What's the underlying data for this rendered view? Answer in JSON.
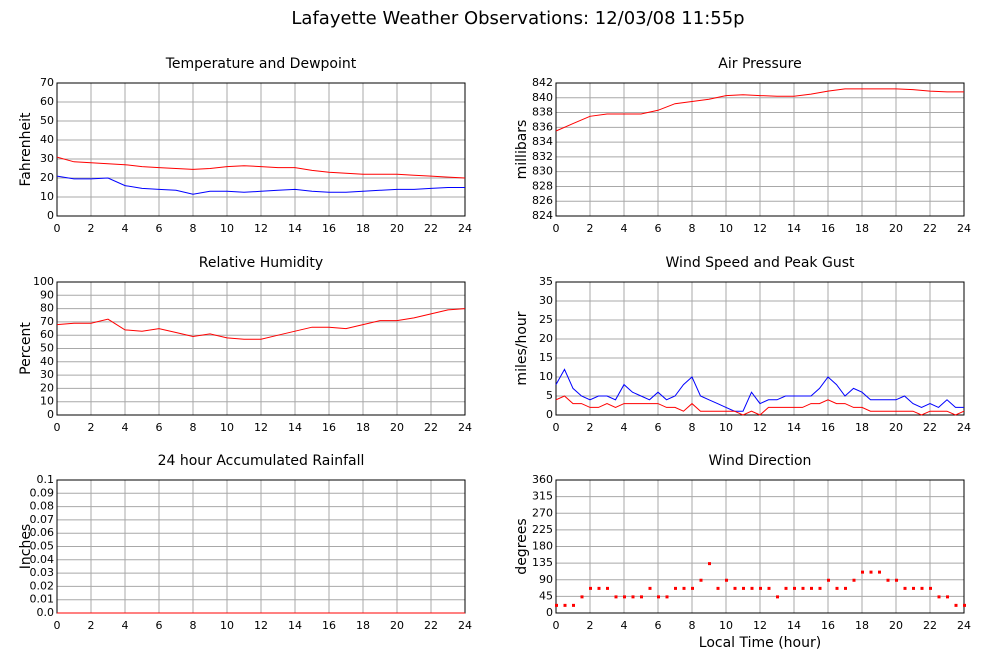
{
  "title": "Lafayette Weather Observations: 12/03/08 11:55p",
  "chart_data": [
    {
      "type": "line",
      "title": "Temperature and Dewpoint",
      "y_label": "Fahrenheit",
      "x": [
        0,
        1,
        2,
        3,
        4,
        5,
        6,
        7,
        8,
        9,
        10,
        11,
        12,
        13,
        14,
        15,
        16,
        17,
        18,
        19,
        20,
        21,
        22,
        23,
        24
      ],
      "xlim": [
        0,
        24
      ],
      "xticks": [
        0,
        2,
        4,
        6,
        8,
        10,
        12,
        14,
        16,
        18,
        20,
        22,
        24
      ],
      "ylim": [
        0,
        70
      ],
      "yticks": [
        0,
        10,
        20,
        30,
        40,
        50,
        60,
        70
      ],
      "grid": true,
      "series": [
        {
          "name": "Temperature",
          "color": "#ff0000",
          "values": [
            31,
            28.5,
            28,
            27.5,
            27,
            26,
            25.5,
            25,
            24.5,
            25,
            26,
            26.5,
            26,
            25.5,
            25.5,
            24,
            23,
            22.5,
            22,
            22,
            22,
            21.5,
            21,
            20.5,
            20
          ]
        },
        {
          "name": "Dewpoint",
          "color": "#0000ff",
          "values": [
            21,
            19.5,
            19.5,
            20,
            16,
            14.5,
            14,
            13.5,
            11.5,
            13,
            13,
            12.5,
            13,
            13.5,
            14,
            13,
            12.5,
            12.5,
            13,
            13.5,
            14,
            14,
            14.5,
            15,
            15
          ]
        }
      ]
    },
    {
      "type": "line",
      "title": "Air Pressure",
      "y_label": "millibars",
      "x": [
        0,
        1,
        2,
        3,
        4,
        5,
        6,
        7,
        8,
        9,
        10,
        11,
        12,
        13,
        14,
        15,
        16,
        17,
        18,
        19,
        20,
        21,
        22,
        23,
        24
      ],
      "xlim": [
        0,
        24
      ],
      "xticks": [
        0,
        2,
        4,
        6,
        8,
        10,
        12,
        14,
        16,
        18,
        20,
        22,
        24
      ],
      "ylim": [
        824,
        842
      ],
      "yticks": [
        824,
        826,
        828,
        830,
        832,
        834,
        836,
        838,
        840,
        842
      ],
      "grid": true,
      "series": [
        {
          "name": "Pressure",
          "color": "#ff0000",
          "values": [
            835.5,
            836.5,
            837.5,
            837.8,
            837.8,
            837.8,
            838.3,
            839.2,
            839.5,
            839.8,
            840.3,
            840.4,
            840.3,
            840.2,
            840.2,
            840.5,
            840.9,
            841.2,
            841.2,
            841.2,
            841.2,
            841.1,
            840.9,
            840.8,
            840.8
          ]
        }
      ]
    },
    {
      "type": "line",
      "title": "Relative Humidity",
      "y_label": "Percent",
      "x": [
        0,
        1,
        2,
        3,
        4,
        5,
        6,
        7,
        8,
        9,
        10,
        11,
        12,
        13,
        14,
        15,
        16,
        17,
        18,
        19,
        20,
        21,
        22,
        23,
        24
      ],
      "xlim": [
        0,
        24
      ],
      "xticks": [
        0,
        2,
        4,
        6,
        8,
        10,
        12,
        14,
        16,
        18,
        20,
        22,
        24
      ],
      "ylim": [
        0,
        100
      ],
      "yticks": [
        0,
        10,
        20,
        30,
        40,
        50,
        60,
        70,
        80,
        90,
        100
      ],
      "grid": true,
      "series": [
        {
          "name": "Humidity",
          "color": "#ff0000",
          "values": [
            68,
            69,
            69,
            72,
            64,
            63,
            65,
            62,
            59,
            61,
            58,
            57,
            57,
            60,
            63,
            66,
            66,
            65,
            68,
            71,
            71,
            73,
            76,
            79,
            80
          ]
        }
      ]
    },
    {
      "type": "line",
      "title": "Wind Speed and Peak Gust",
      "y_label": "miles/hour",
      "x": [
        0,
        0.5,
        1,
        1.5,
        2,
        2.5,
        3,
        3.5,
        4,
        4.5,
        5,
        5.5,
        6,
        6.5,
        7,
        7.5,
        8,
        8.5,
        9,
        9.5,
        10,
        10.5,
        11,
        11.5,
        12,
        12.5,
        13,
        13.5,
        14,
        14.5,
        15,
        15.5,
        16,
        16.5,
        17,
        17.5,
        18,
        18.5,
        19,
        19.5,
        20,
        20.5,
        21,
        21.5,
        22,
        22.5,
        23,
        23.5,
        24
      ],
      "xlim": [
        0,
        24
      ],
      "xticks": [
        0,
        2,
        4,
        6,
        8,
        10,
        12,
        14,
        16,
        18,
        20,
        22,
        24
      ],
      "ylim": [
        0,
        35
      ],
      "yticks": [
        0,
        5,
        10,
        15,
        20,
        25,
        30,
        35
      ],
      "grid": true,
      "series": [
        {
          "name": "Peak Gust",
          "color": "#0000ff",
          "values": [
            8,
            12,
            7,
            5,
            4,
            5,
            5,
            4,
            8,
            6,
            5,
            4,
            6,
            4,
            5,
            8,
            10,
            5,
            4,
            3,
            2,
            1,
            1,
            6,
            3,
            4,
            4,
            5,
            5,
            5,
            5,
            7,
            10,
            8,
            5,
            7,
            6,
            4,
            4,
            4,
            4,
            5,
            3,
            2,
            3,
            2,
            4,
            2,
            2
          ]
        },
        {
          "name": "Wind Speed",
          "color": "#ff0000",
          "values": [
            4,
            5,
            3,
            3,
            2,
            2,
            3,
            2,
            3,
            3,
            3,
            3,
            3,
            2,
            2,
            1,
            3,
            1,
            1,
            1,
            1,
            1,
            0,
            1,
            0,
            2,
            2,
            2,
            2,
            2,
            3,
            3,
            4,
            3,
            3,
            2,
            2,
            1,
            1,
            1,
            1,
            1,
            1,
            0,
            1,
            1,
            1,
            0,
            1
          ]
        }
      ]
    },
    {
      "type": "line",
      "title": "24 hour Accumulated Rainfall",
      "y_label": "Inches",
      "x": [
        0,
        1,
        2,
        3,
        4,
        5,
        6,
        7,
        8,
        9,
        10,
        11,
        12,
        13,
        14,
        15,
        16,
        17,
        18,
        19,
        20,
        21,
        22,
        23,
        24
      ],
      "xlim": [
        0,
        24
      ],
      "xticks": [
        0,
        2,
        4,
        6,
        8,
        10,
        12,
        14,
        16,
        18,
        20,
        22,
        24
      ],
      "ylim": [
        0,
        0.1
      ],
      "yticks": [
        {
          "value": 0,
          "label": "0.0"
        },
        0.01,
        0.02,
        0.03,
        0.04,
        0.05,
        0.06,
        0.07,
        0.08,
        0.09,
        0.1
      ],
      "grid": true,
      "series": [
        {
          "name": "Rainfall",
          "color": "#ff0000",
          "values": [
            0,
            0,
            0,
            0,
            0,
            0,
            0,
            0,
            0,
            0,
            0,
            0,
            0,
            0,
            0,
            0,
            0,
            0,
            0,
            0,
            0,
            0,
            0,
            0,
            0
          ]
        }
      ]
    },
    {
      "type": "scatter",
      "title": "Wind Direction",
      "y_label": "degrees",
      "x_label": "Local Time (hour)",
      "x": [
        0,
        0.5,
        1,
        1.5,
        2,
        2.5,
        3,
        3.5,
        4,
        4.5,
        5,
        5.5,
        6,
        6.5,
        7,
        7.5,
        8,
        8.5,
        9,
        9.5,
        10,
        10.5,
        11,
        11.5,
        12,
        12.5,
        13,
        13.5,
        14,
        14.5,
        15,
        15.5,
        16,
        16.5,
        17,
        17.5,
        18,
        18.5,
        19,
        19.5,
        20,
        20.5,
        21,
        21.5,
        22,
        22.5,
        23,
        23.5,
        24
      ],
      "xlim": [
        0,
        24
      ],
      "xticks": [
        0,
        2,
        4,
        6,
        8,
        10,
        12,
        14,
        16,
        18,
        20,
        22,
        24
      ],
      "ylim": [
        0,
        360
      ],
      "yticks": [
        0,
        45,
        90,
        135,
        180,
        225,
        270,
        315,
        360
      ],
      "grid": true,
      "series": [
        {
          "name": "Direction",
          "color": "#ff0000",
          "values": [
            22,
            22,
            22,
            45,
            68,
            68,
            68,
            45,
            45,
            45,
            45,
            68,
            45,
            45,
            68,
            68,
            68,
            90,
            135,
            68,
            90,
            68,
            68,
            68,
            68,
            68,
            45,
            68,
            68,
            68,
            68,
            68,
            90,
            68,
            68,
            90,
            112,
            112,
            112,
            90,
            90,
            68,
            68,
            68,
            68,
            45,
            45,
            22,
            22
          ]
        }
      ]
    }
  ]
}
